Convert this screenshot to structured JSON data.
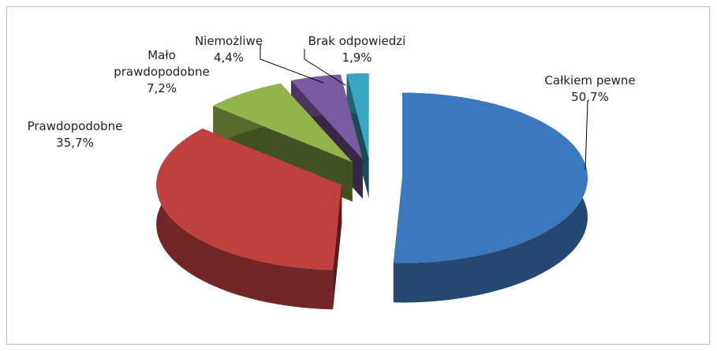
{
  "chart_data": {
    "type": "pie3d",
    "categories": [
      "Całkiem pewne",
      "Prawdopodobne",
      "Mało prawdopodobne",
      "Niemożliwe",
      "Brak odpowiedzi"
    ],
    "values": [
      50.7,
      35.7,
      7.2,
      4.4,
      1.9
    ],
    "value_labels": [
      "50,7%",
      "35,7%",
      "7,2%",
      "4,4%",
      "1,9%"
    ],
    "colors": [
      "#3c78be",
      "#be4140",
      "#92b44a",
      "#7a5aa0",
      "#3aa6c0"
    ]
  }
}
